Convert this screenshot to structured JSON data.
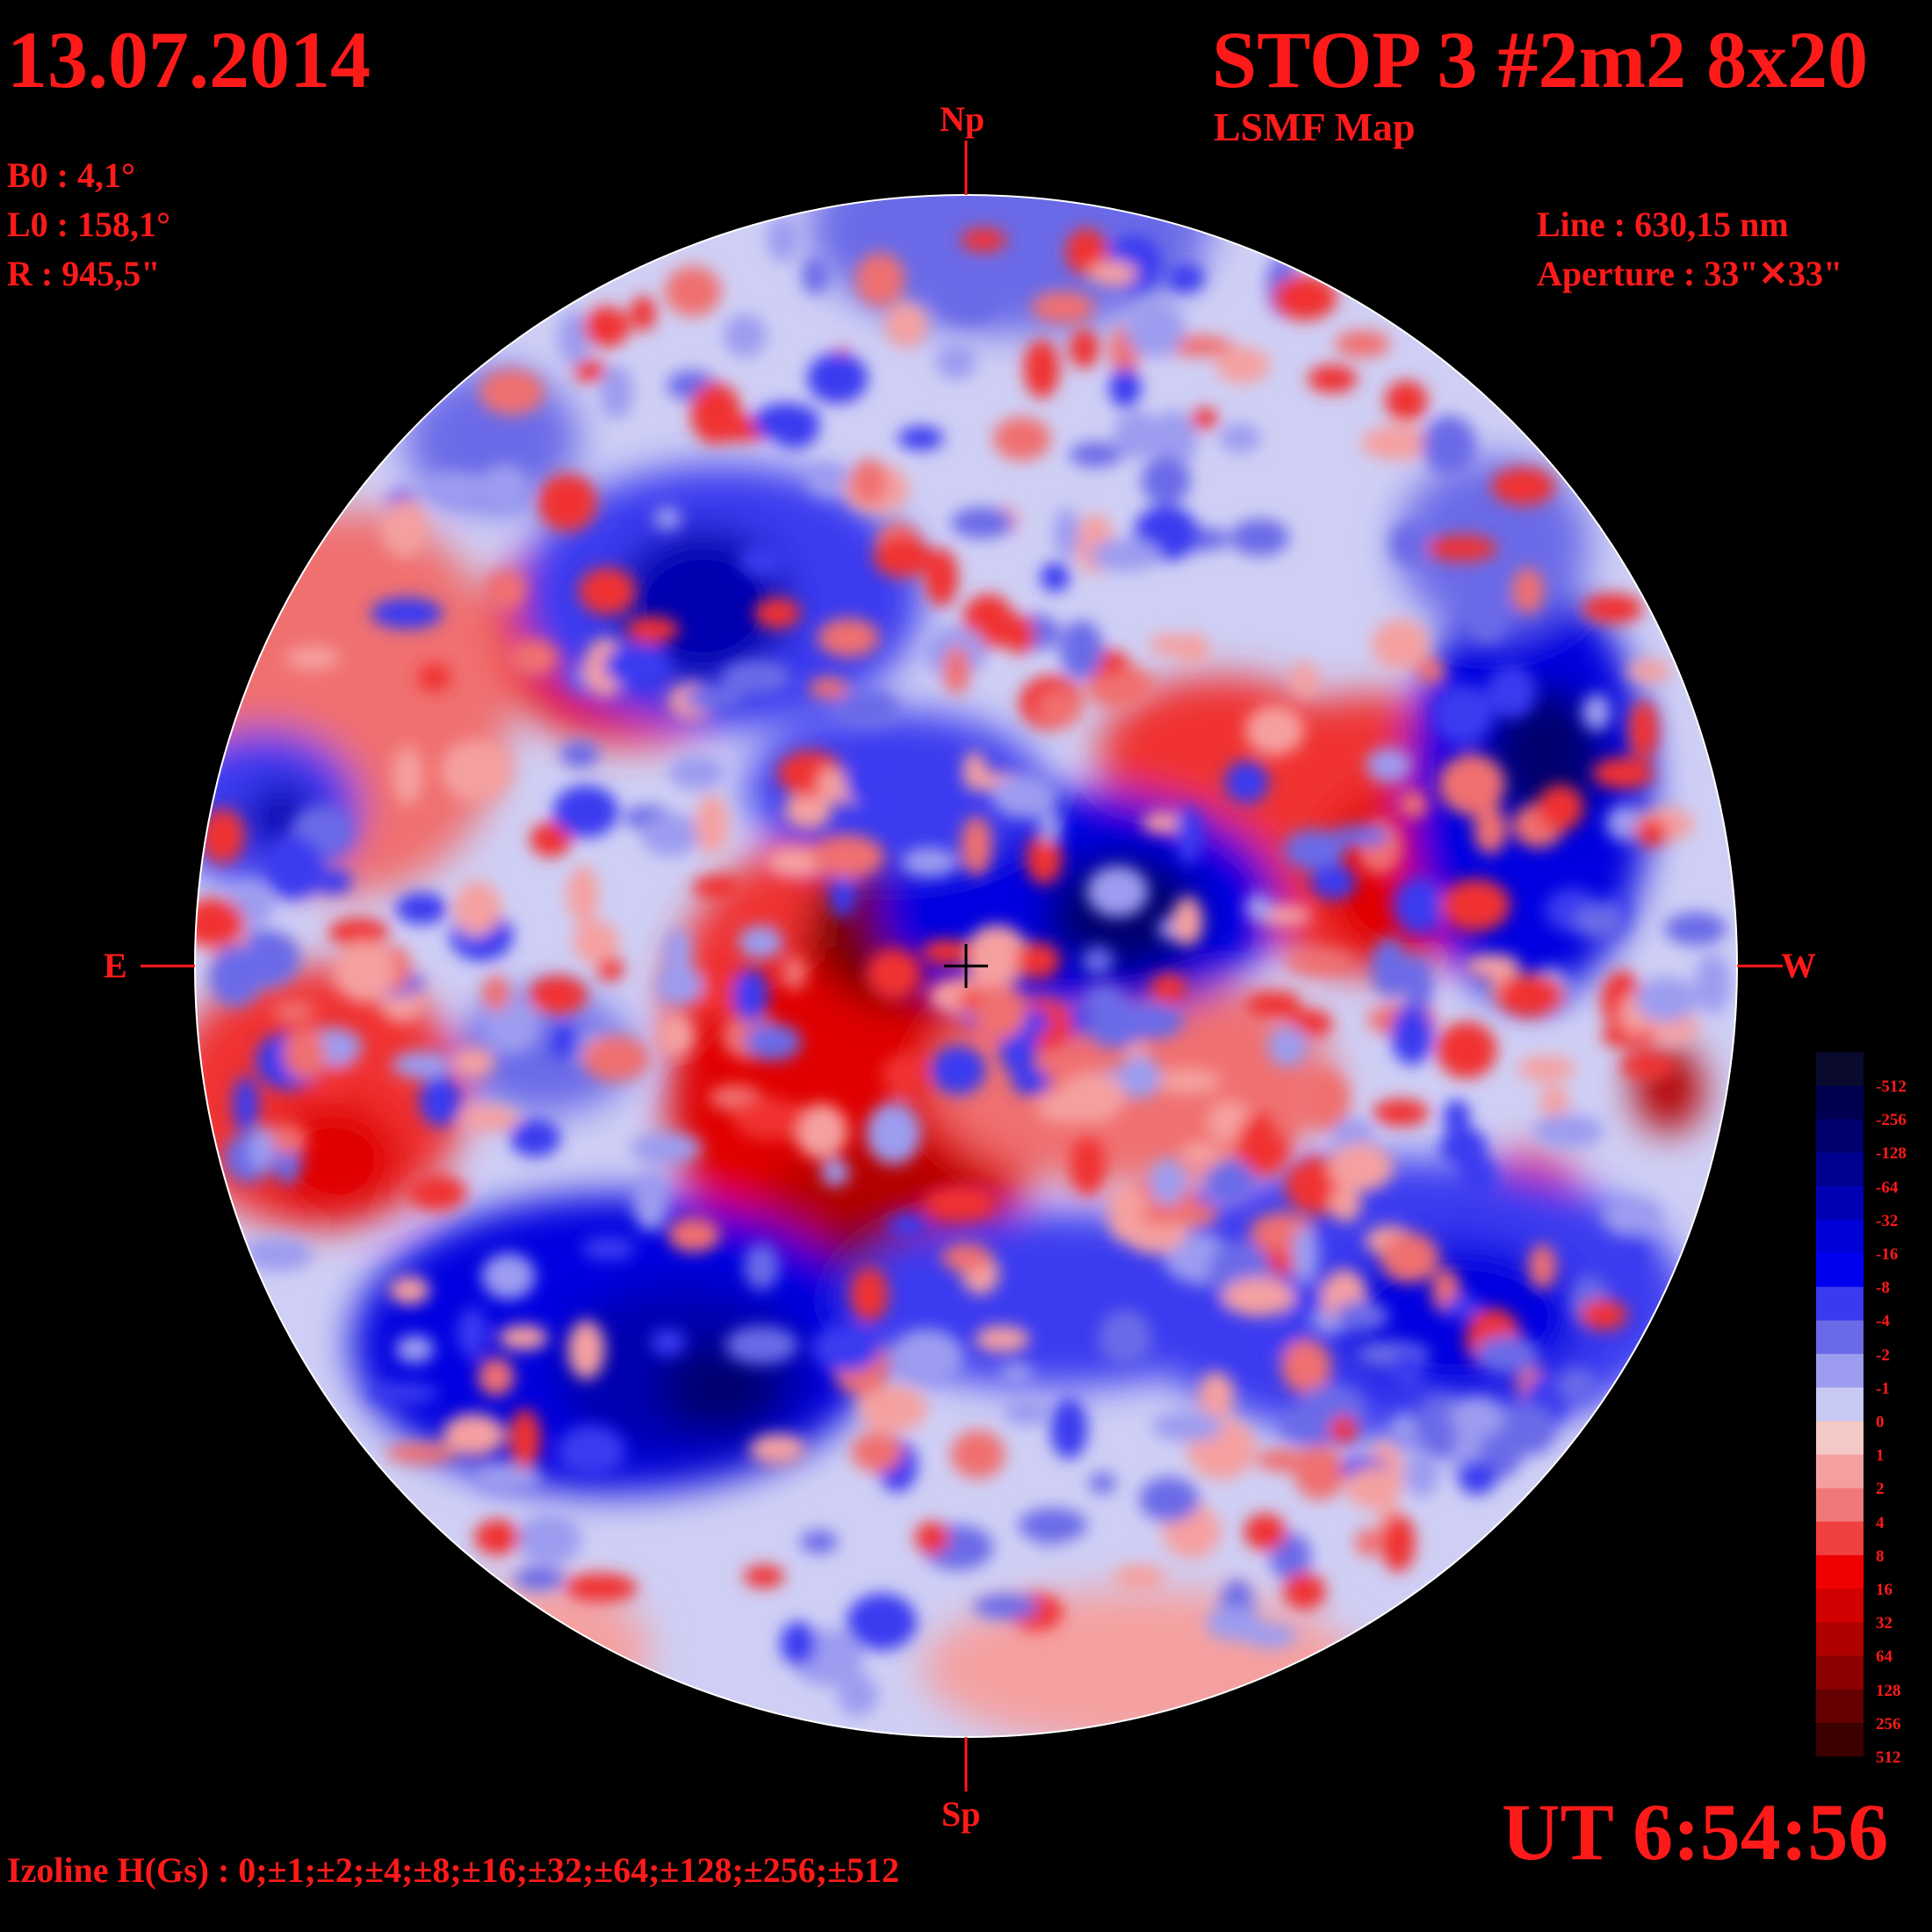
{
  "header": {
    "date": "13.07.2014",
    "title": "STOP 3 #2m2 8x20",
    "subtitle": "LSMF  Map"
  },
  "params": {
    "b0": "B0 : 4,1°",
    "l0": "L0 : 158,1°",
    "r": "R  : 945,5\"",
    "line": "Line :  630,15 nm",
    "aperture": "Aperture : 33\"✕33\""
  },
  "orientation": {
    "north": "Np",
    "south": "Sp",
    "east": "E",
    "west": "W"
  },
  "time": "UT 6:54:56",
  "izoline": "Izoline H(Gs) : 0;±1;±2;±4;±8;±16;±32;±64;±128;±256;±512",
  "legend": {
    "levels": [
      "-512",
      "-256",
      "-128",
      "-64",
      "-32",
      "-16",
      "-8",
      "-4",
      "-2",
      "-1",
      "0",
      "1",
      "2",
      "4",
      "8",
      "16",
      "32",
      "64",
      "128",
      "256",
      "512"
    ],
    "colors": [
      "#0a0a2e",
      "#000050",
      "#00006e",
      "#000090",
      "#0000b4",
      "#0000d8",
      "#0000f0",
      "#3a3af0",
      "#6a6ae8",
      "#9c9cf0",
      "#c8c8f5",
      "#f5c8c8",
      "#f5a0a0",
      "#f07878",
      "#f04040",
      "#f00000",
      "#d20000",
      "#b00000",
      "#8c0000",
      "#640000",
      "#3c0000"
    ]
  },
  "colors": {
    "text": "#ff1a1a",
    "background": "#000000",
    "positive": "#e00000",
    "negative": "#0000e0"
  }
}
